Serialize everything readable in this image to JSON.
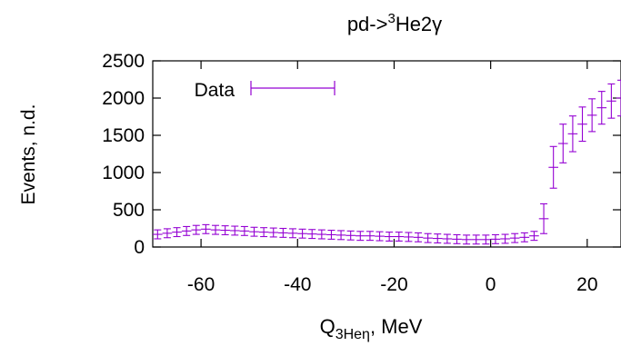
{
  "chart_data": {
    "type": "scatter",
    "title_main": "pd->",
    "title_sup": "3",
    "title_tail": "He2γ",
    "xlabel_main": "Q",
    "xlabel_sub": "3Heη",
    "xlabel_tail": ", MeV",
    "ylabel": "Events, n.d.",
    "xlim": [
      -70,
      27
    ],
    "ylim": [
      0,
      2500
    ],
    "xticks": [
      -60,
      -40,
      -20,
      0,
      20
    ],
    "yticks": [
      0,
      500,
      1000,
      1500,
      2000,
      2500
    ],
    "grid": false,
    "legend_position": "top-left",
    "series": [
      {
        "name": "Data",
        "color": "#9400d3",
        "x": [
          -69,
          -67,
          -65,
          -63,
          -61,
          -59,
          -57,
          -55,
          -53,
          -51,
          -49,
          -47,
          -45,
          -43,
          -41,
          -39,
          -37,
          -35,
          -33,
          -31,
          -29,
          -27,
          -25,
          -23,
          -21,
          -19,
          -17,
          -15,
          -13,
          -11,
          -9,
          -7,
          -5,
          -3,
          -1,
          1,
          3,
          5,
          7,
          9,
          11,
          13,
          15,
          17,
          19,
          21,
          23,
          25,
          27
        ],
        "y": [
          170,
          185,
          200,
          215,
          230,
          240,
          230,
          225,
          220,
          215,
          205,
          200,
          195,
          190,
          185,
          180,
          175,
          170,
          165,
          160,
          155,
          150,
          150,
          145,
          140,
          140,
          135,
          130,
          120,
          115,
          110,
          105,
          100,
          100,
          100,
          105,
          110,
          120,
          130,
          150,
          380,
          1070,
          1390,
          1520,
          1650,
          1770,
          1870,
          1960,
          2000
        ],
        "yerr": [
          60,
          60,
          60,
          60,
          60,
          60,
          60,
          60,
          60,
          60,
          60,
          60,
          60,
          60,
          60,
          60,
          60,
          60,
          60,
          60,
          60,
          60,
          60,
          60,
          60,
          60,
          60,
          60,
          60,
          60,
          60,
          60,
          60,
          60,
          60,
          60,
          60,
          60,
          60,
          60,
          200,
          280,
          260,
          240,
          230,
          220,
          220,
          230,
          240
        ],
        "xerr": 1
      }
    ]
  }
}
